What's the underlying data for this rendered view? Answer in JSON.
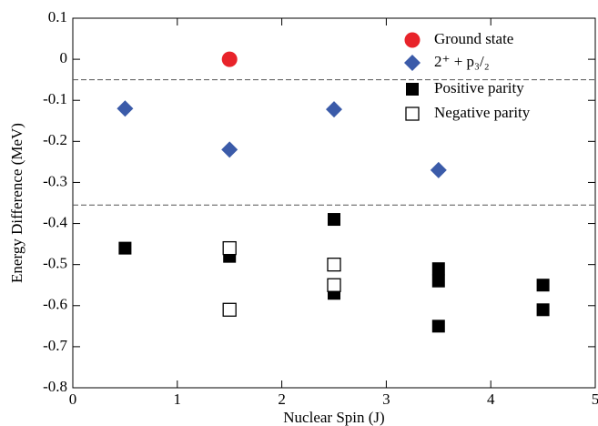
{
  "chart_data": {
    "type": "scatter",
    "xlabel": "Nuclear Spin (J)",
    "ylabel": "Energy Difference (MeV)",
    "xlim": [
      0,
      5
    ],
    "xticks": [
      0,
      1,
      2,
      3,
      4,
      5
    ],
    "ylim": [
      -0.8,
      0.1
    ],
    "yticks": [
      -0.8,
      -0.7,
      -0.6,
      -0.5,
      -0.4,
      -0.3,
      -0.2,
      -0.1,
      0,
      0.1
    ],
    "hlines": [
      -0.05,
      -0.355
    ],
    "legend": "upper right",
    "series": [
      {
        "name": "Ground state",
        "color": "#e8232a",
        "marker": "circle",
        "x": [
          1.5
        ],
        "values": [
          0
        ]
      },
      {
        "name": "2⁺ + p₃/₂",
        "color": "#3b5ba9",
        "marker": "diamond",
        "x": [
          0.5,
          1.5,
          2.5,
          3.5
        ],
        "values": [
          -0.12,
          -0.22,
          -0.122,
          -0.27
        ]
      },
      {
        "name": "Positive parity",
        "color": "#000000",
        "marker": "square",
        "x": [
          0.5,
          1.5,
          2.5,
          2.5,
          3.5,
          3.5,
          3.5,
          4.5,
          4.5
        ],
        "values": [
          -0.46,
          -0.48,
          -0.39,
          -0.57,
          -0.51,
          -0.54,
          -0.65,
          -0.55,
          -0.61
        ]
      },
      {
        "name": "Negative parity",
        "color": "#000000",
        "marker": "open-square",
        "x": [
          1.5,
          1.5,
          2.5,
          2.5
        ],
        "values": [
          -0.46,
          -0.61,
          -0.5,
          -0.55
        ]
      }
    ]
  }
}
